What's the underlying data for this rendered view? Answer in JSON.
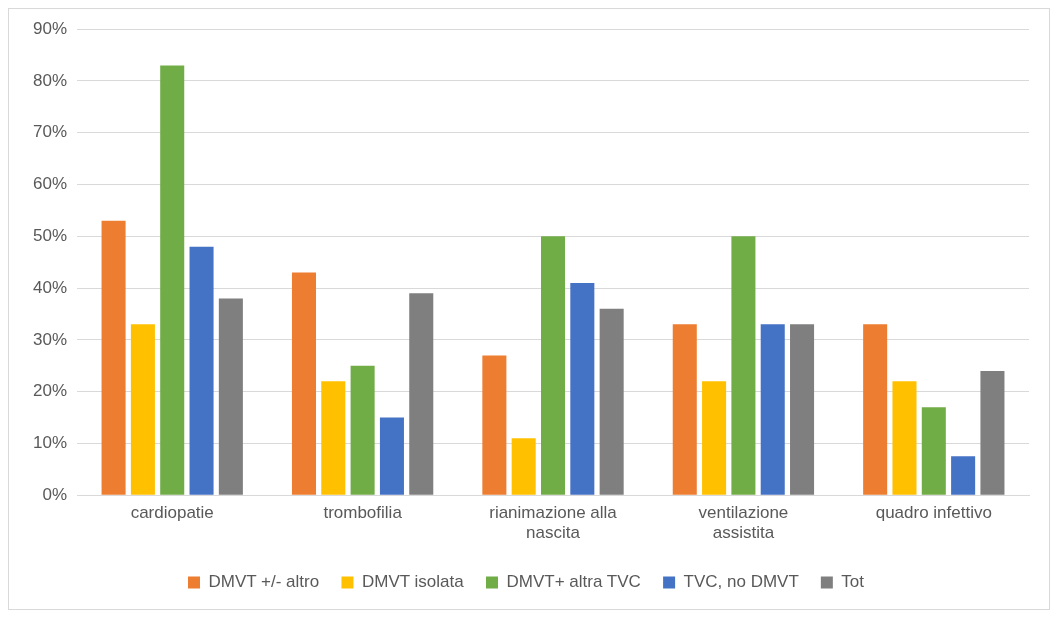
{
  "chart_data": {
    "type": "bar",
    "categories": [
      "cardiopatie",
      "trombofilia",
      "rianimazione alla nascita",
      "ventilazione assistita",
      "quadro infettivo"
    ],
    "series": [
      {
        "name": "DMVT +/- altro",
        "color": "#ed7d31",
        "values": [
          53,
          43,
          27,
          33,
          33
        ]
      },
      {
        "name": "DMVT isolata",
        "color": "#ffc000",
        "values": [
          33,
          22,
          11,
          22,
          22
        ]
      },
      {
        "name": "DMVT+ altra TVC",
        "color": "#70ad47",
        "values": [
          83,
          25,
          50,
          50,
          17
        ]
      },
      {
        "name": "TVC, no DMVT",
        "color": "#4472c4",
        "values": [
          48,
          15,
          41,
          33,
          7.5
        ]
      },
      {
        "name": "Tot",
        "color": "#7f7f7f",
        "values": [
          38,
          39,
          36,
          33,
          24
        ]
      }
    ],
    "ylim": [
      0,
      90
    ],
    "yticks": [
      {
        "value": 0,
        "label": "0%"
      },
      {
        "value": 10,
        "label": "10%"
      },
      {
        "value": 20,
        "label": "20%"
      },
      {
        "value": 30,
        "label": "30%"
      },
      {
        "value": 40,
        "label": "40%"
      },
      {
        "value": 50,
        "label": "50%"
      },
      {
        "value": 60,
        "label": "60%"
      },
      {
        "value": 70,
        "label": "70%"
      },
      {
        "value": 80,
        "label": "80%"
      },
      {
        "value": 90,
        "label": "90%"
      }
    ],
    "grid": "y",
    "legend": "bottom"
  }
}
